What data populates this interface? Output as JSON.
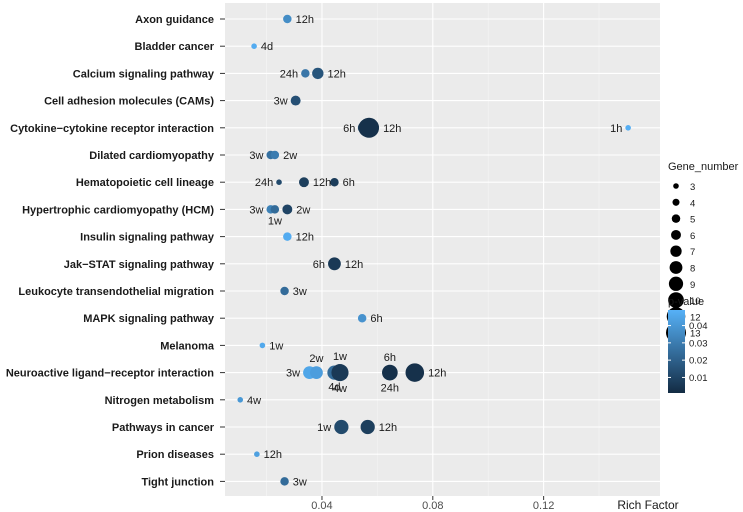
{
  "chart_data": {
    "type": "scatter",
    "title": "",
    "xlabel": "Rich Factor",
    "ylabel": "",
    "xlim": [
      0.005,
      0.162
    ],
    "x_ticks": [
      0.04,
      0.08,
      0.12
    ],
    "x_tick_labels": [
      "0.04",
      "0.08",
      "0.12"
    ],
    "grid": true,
    "categories": [
      "Axon guidance",
      "Bladder cancer",
      "Calcium signaling pathway",
      "Cell adhesion molecules (CAMs)",
      "Cytokine−cytokine receptor interaction",
      "Dilated cardiomyopathy",
      "Hematopoietic cell lineage",
      "Hypertrophic cardiomyopathy (HCM)",
      "Insulin signaling pathway",
      "Jak−STAT signaling pathway",
      "Leukocyte transendothelial migration",
      "MAPK signaling pathway",
      "Melanoma",
      "Neuroactive ligand−receptor interaction",
      "Nitrogen metabolism",
      "Pathways in cancer",
      "Prion diseases",
      "Tight junction"
    ],
    "points": [
      {
        "pathway": 0,
        "x": 0.0275,
        "genes": 5,
        "p": 0.036,
        "label": "12h",
        "label_pos": "right"
      },
      {
        "pathway": 1,
        "x": 0.0155,
        "genes": 3,
        "p": 0.047,
        "label": "4d",
        "label_pos": "right"
      },
      {
        "pathway": 2,
        "x": 0.034,
        "genes": 5,
        "p": 0.028,
        "label": "24h",
        "label_pos": "left"
      },
      {
        "pathway": 2,
        "x": 0.0385,
        "genes": 7,
        "p": 0.016,
        "label": "12h",
        "label_pos": "right"
      },
      {
        "pathway": 3,
        "x": 0.0305,
        "genes": 6,
        "p": 0.014,
        "label": "3w",
        "label_pos": "left"
      },
      {
        "pathway": 4,
        "x": 0.055,
        "genes": 7,
        "p": 0.012,
        "label": "",
        "label_pos": "none"
      },
      {
        "pathway": 4,
        "x": 0.0565,
        "genes": 12,
        "p": 0.004,
        "label": "6h",
        "label_pos": "left"
      },
      {
        "pathway": 4,
        "x": 0.057,
        "genes": 13,
        "p": 0.003,
        "label": "12h",
        "label_pos": "right"
      },
      {
        "pathway": 4,
        "x": 0.1505,
        "genes": 3,
        "p": 0.048,
        "label": "1h",
        "label_pos": "left"
      },
      {
        "pathway": 5,
        "x": 0.0215,
        "genes": 5,
        "p": 0.026,
        "label": "3w",
        "label_pos": "left"
      },
      {
        "pathway": 5,
        "x": 0.023,
        "genes": 5,
        "p": 0.03,
        "label": "2w",
        "label_pos": "right"
      },
      {
        "pathway": 6,
        "x": 0.0245,
        "genes": 3,
        "p": 0.012,
        "label": "24h",
        "label_pos": "left"
      },
      {
        "pathway": 6,
        "x": 0.0335,
        "genes": 6,
        "p": 0.008,
        "label": "12h",
        "label_pos": "right"
      },
      {
        "pathway": 6,
        "x": 0.0445,
        "genes": 5,
        "p": 0.007,
        "label": "6h",
        "label_pos": "right"
      },
      {
        "pathway": 7,
        "x": 0.0215,
        "genes": 5,
        "p": 0.032,
        "label": "3w",
        "label_pos": "left"
      },
      {
        "pathway": 7,
        "x": 0.023,
        "genes": 5,
        "p": 0.024,
        "label": "1w",
        "label_pos": "below"
      },
      {
        "pathway": 7,
        "x": 0.0275,
        "genes": 6,
        "p": 0.01,
        "label": "2w",
        "label_pos": "right"
      },
      {
        "pathway": 8,
        "x": 0.0275,
        "genes": 5,
        "p": 0.047,
        "label": "12h",
        "label_pos": "right"
      },
      {
        "pathway": 9,
        "x": 0.0445,
        "genes": 8,
        "p": 0.006,
        "label": "6h",
        "label_pos": "left",
        "label2": "12h"
      },
      {
        "pathway": 10,
        "x": 0.0265,
        "genes": 5,
        "p": 0.024,
        "label": "3w",
        "label_pos": "right"
      },
      {
        "pathway": 11,
        "x": 0.0545,
        "genes": 5,
        "p": 0.038,
        "label": "6h",
        "label_pos": "right"
      },
      {
        "pathway": 12,
        "x": 0.0185,
        "genes": 3,
        "p": 0.046,
        "label": "1w",
        "label_pos": "right"
      },
      {
        "pathway": 13,
        "x": 0.0355,
        "genes": 8,
        "p": 0.045,
        "label": "3w",
        "label_pos": "left"
      },
      {
        "pathway": 13,
        "x": 0.038,
        "genes": 8,
        "p": 0.042,
        "label": "2w",
        "label_pos": "above"
      },
      {
        "pathway": 13,
        "x": 0.0445,
        "genes": 9,
        "p": 0.024,
        "label": "4d",
        "label_pos": "below"
      },
      {
        "pathway": 13,
        "x": 0.0465,
        "genes": 11,
        "p": 0.006,
        "label": "1w",
        "label_pos": "above",
        "label2": "4w"
      },
      {
        "pathway": 13,
        "x": 0.0645,
        "genes": 10,
        "p": 0.003,
        "label": "6h",
        "label_pos": "above",
        "label2": "24h"
      },
      {
        "pathway": 13,
        "x": 0.0735,
        "genes": 12,
        "p": 0.003,
        "label": "12h",
        "label_pos": "right"
      },
      {
        "pathway": 14,
        "x": 0.0105,
        "genes": 3,
        "p": 0.04,
        "label": "4w",
        "label_pos": "right"
      },
      {
        "pathway": 15,
        "x": 0.047,
        "genes": 9,
        "p": 0.012,
        "label": "1w",
        "label_pos": "left"
      },
      {
        "pathway": 15,
        "x": 0.0565,
        "genes": 9,
        "p": 0.008,
        "label": "12h",
        "label_pos": "right"
      },
      {
        "pathway": 16,
        "x": 0.0165,
        "genes": 3,
        "p": 0.043,
        "label": "12h",
        "label_pos": "right"
      },
      {
        "pathway": 17,
        "x": 0.0265,
        "genes": 5,
        "p": 0.024,
        "label": "3w",
        "label_pos": "right"
      }
    ],
    "size_legend": {
      "title": "Gene_number",
      "values": [
        3,
        4,
        5,
        6,
        7,
        8,
        9,
        10,
        12,
        13
      ]
    },
    "color_legend": {
      "title": "p-value",
      "range": [
        0.001,
        0.049
      ],
      "ticks": [
        0.04,
        0.03,
        0.02,
        0.01
      ],
      "tick_labels": [
        "0.04",
        "0.03",
        "0.02",
        "0.01"
      ],
      "low_color": "#132b43",
      "high_color": "#56b1f7"
    }
  }
}
